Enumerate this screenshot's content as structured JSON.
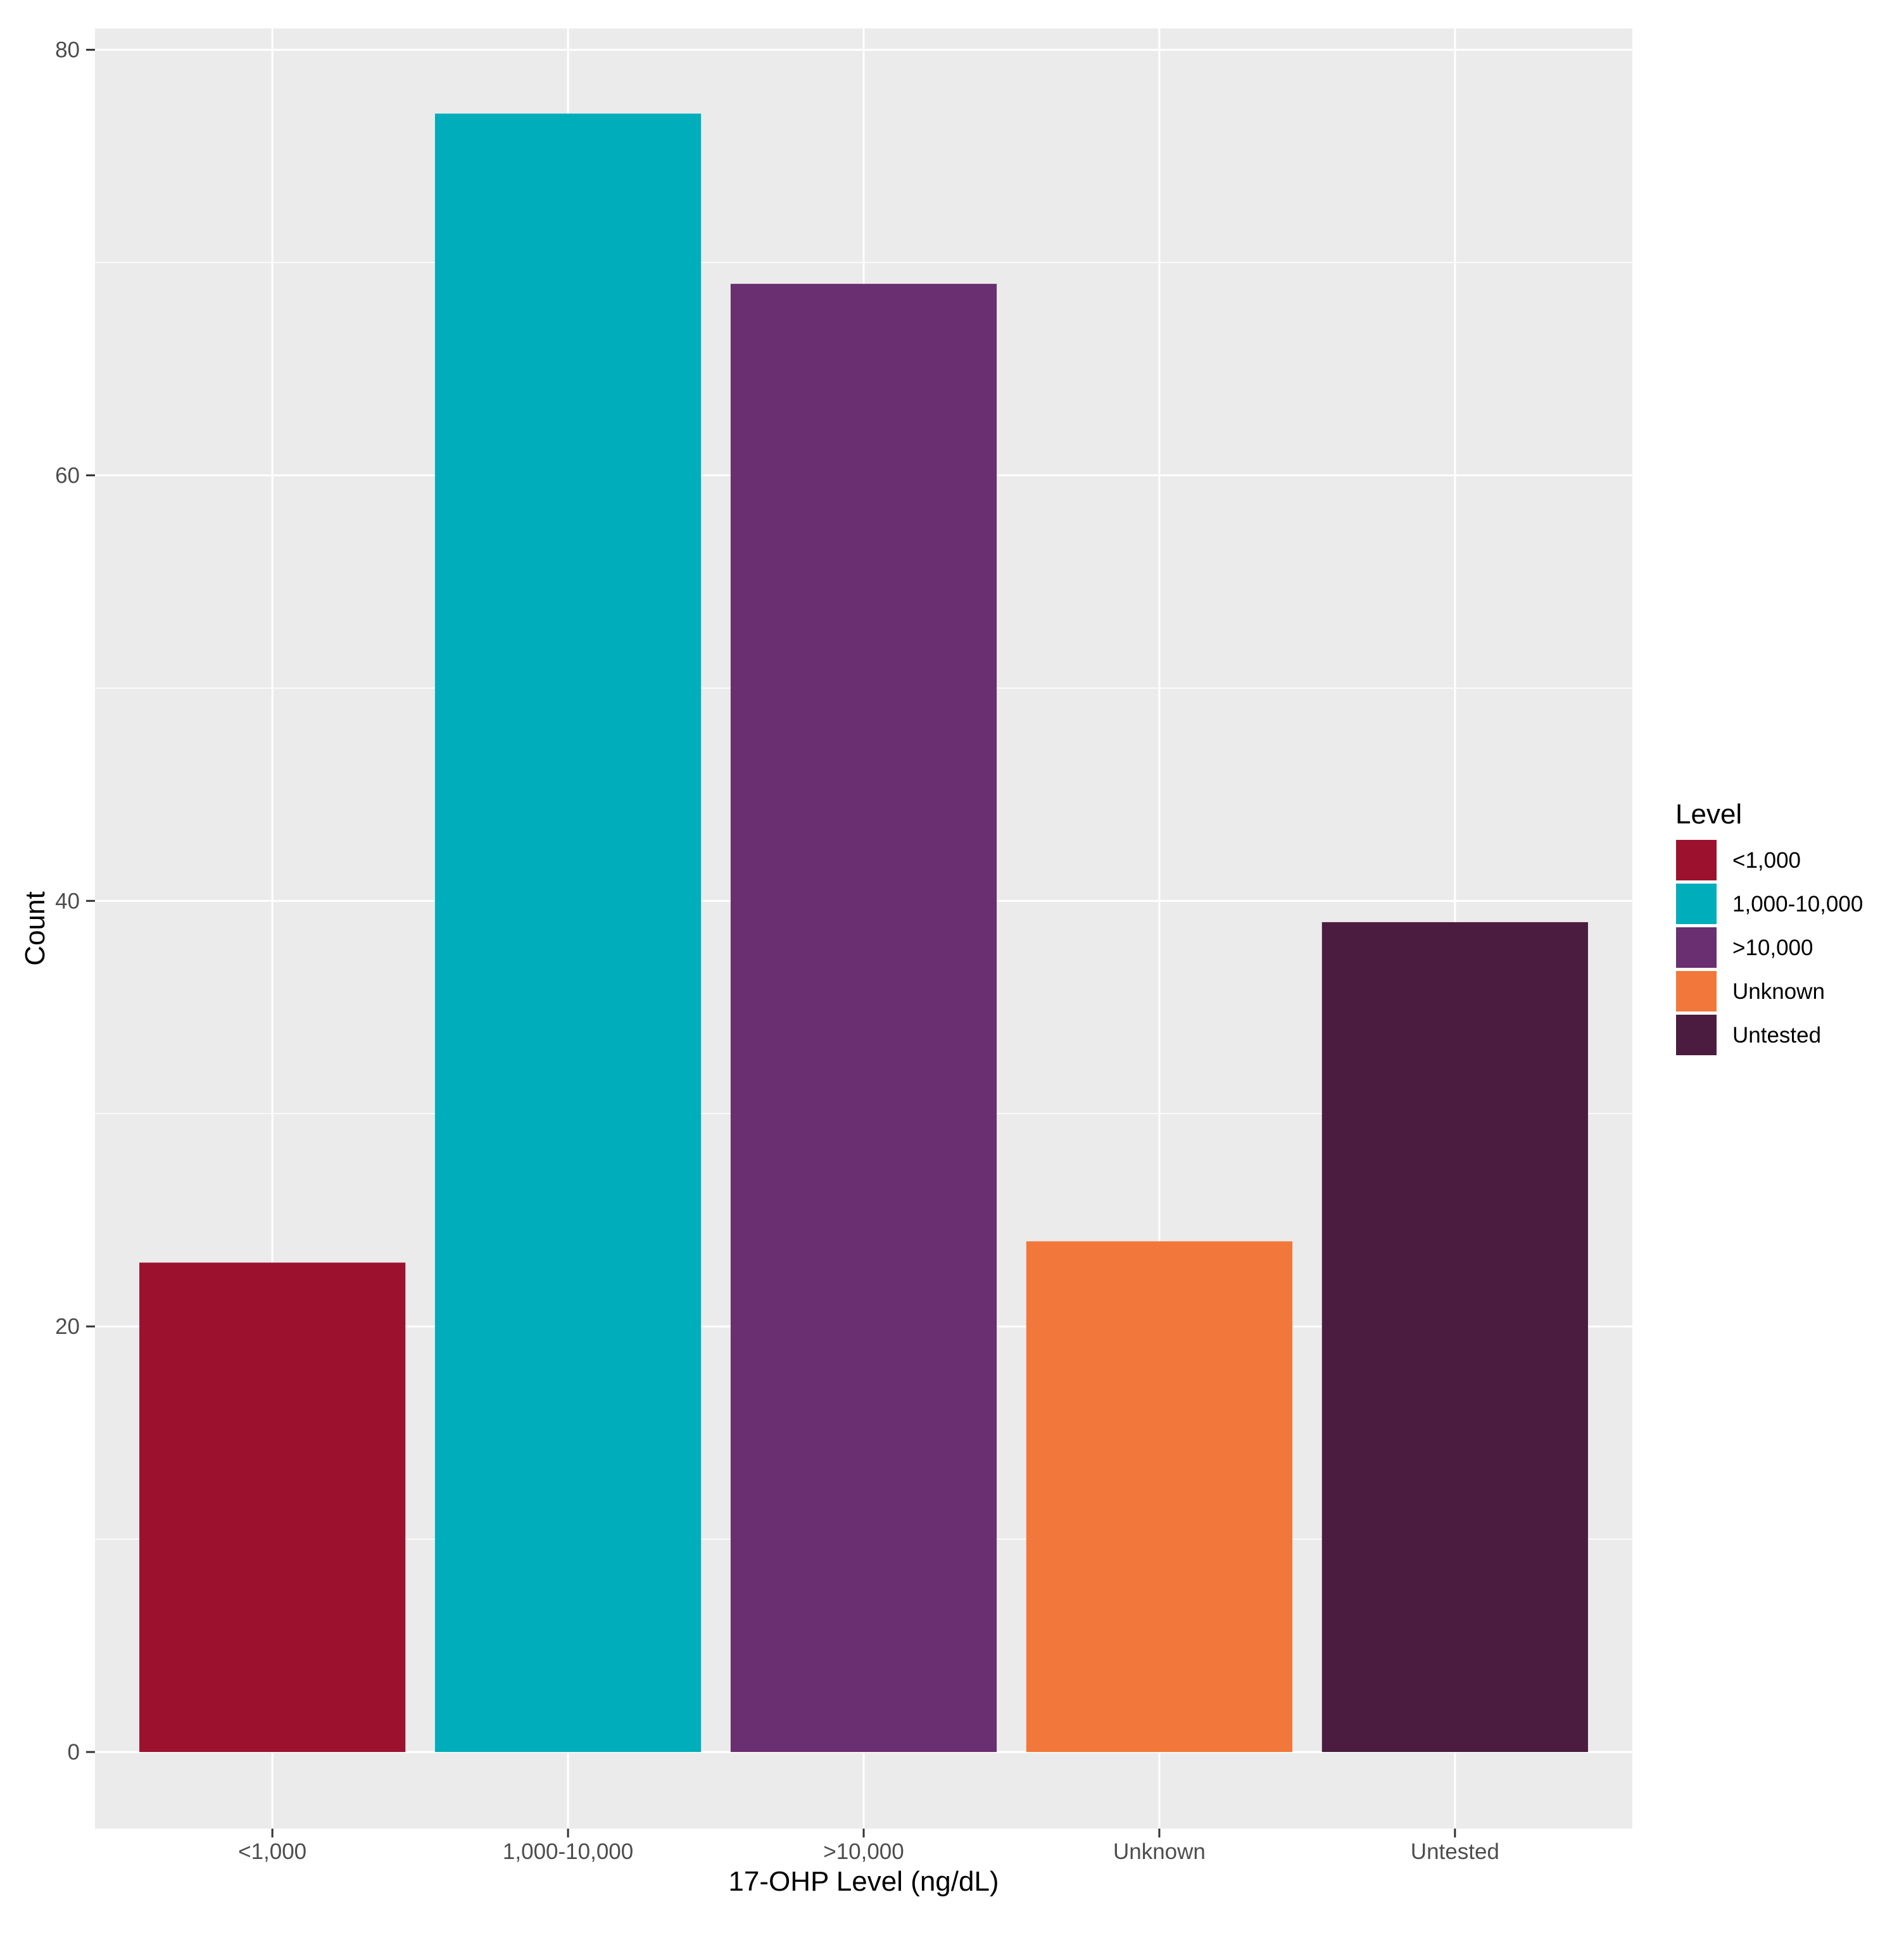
{
  "chart_data": {
    "type": "bar",
    "categories": [
      "<1,000",
      "1,000-10,000",
      ">10,000",
      "Unknown",
      "Untested"
    ],
    "values": [
      23,
      77,
      69,
      24,
      39
    ],
    "colors": [
      "#9c122e",
      "#00aebb",
      "#6a2f70",
      "#f1783a",
      "#4b1c3f"
    ],
    "xlabel": "17-OHP Level (ng/dL)",
    "ylabel": "Count",
    "ylim": [
      -3.6,
      81
    ],
    "yticks": [
      0,
      20,
      40,
      60,
      80
    ],
    "grid": true,
    "legend": {
      "title": "Level",
      "position": "right",
      "items": [
        "<1,000",
        "1,000-10,000",
        ">10,000",
        "Unknown",
        "Untested"
      ]
    }
  }
}
